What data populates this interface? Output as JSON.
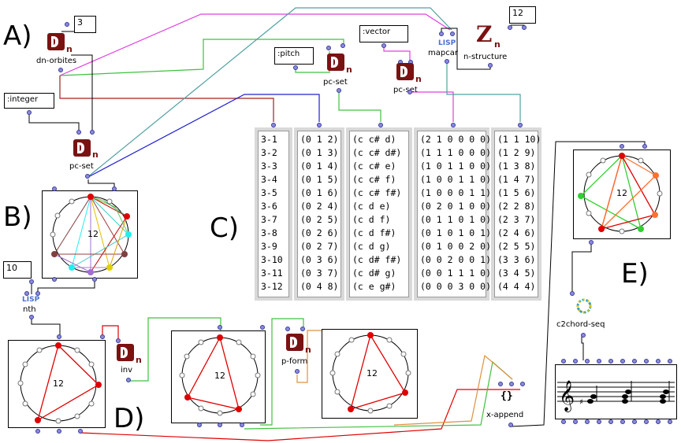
{
  "section_labels": {
    "a": "A)",
    "b": "B)",
    "c": "C)",
    "d": "D)",
    "e": "E)"
  },
  "objects": {
    "dn_orbites": "dn-orbites",
    "pc_set_1": "pc-set",
    "pc_set_2": "pc-set",
    "pc_set_main": "pc-set",
    "mapcar": "mapcar",
    "n_structure": "n-structure",
    "nth": "nth",
    "inv": "inv",
    "p_form": "p-form",
    "x_append": "x-append",
    "c2chord_seq": "c2chord-seq",
    "lisp_badge": "LISP",
    "dn_sub": "n"
  },
  "inputs": {
    "orbites_num": "3",
    "pitch_kw": ":pitch",
    "vector_kw": ":vector",
    "nstruct_num": "12",
    "integer_kw": ":integer",
    "nth_num": "10"
  },
  "circles": {
    "b_label": "12",
    "d1_label": "12",
    "d2_label": "12",
    "d3_label": "12",
    "e_label": "12"
  },
  "lists": {
    "names": [
      "3-1",
      "3-2",
      "3-3",
      "3-4",
      "3-5",
      "3-6",
      "3-7",
      "3-8",
      "3-9",
      "3-10",
      "3-11",
      "3-12"
    ],
    "pcs": [
      "(0 1 2)",
      "(0 1 3)",
      "(0 1 4)",
      "(0 1 5)",
      "(0 1 6)",
      "(0 2 4)",
      "(0 2 5)",
      "(0 2 6)",
      "(0 2 7)",
      "(0 3 6)",
      "(0 3 7)",
      "(0 4 8)"
    ],
    "pitches": [
      "(c c# d)",
      "(c c# d#)",
      "(c c# e)",
      "(c c# f)",
      "(c c# f#)",
      "(c d e)",
      "(c d f)",
      "(c d f#)",
      "(c d g)",
      "(c d# f#)",
      "(c d# g)",
      "(c e g#)"
    ],
    "vectors": [
      "(2 1 0 0 0 0)",
      "(1 1 1 0 0 0)",
      "(1 0 1 1 0 0)",
      "(1 0 0 1 1 0)",
      "(1 0 0 0 1 1)",
      "(0 2 0 1 0 0)",
      "(0 1 1 0 1 0)",
      "(0 1 0 1 0 1)",
      "(0 1 0 0 2 0)",
      "(0 0 2 0 0 1)",
      "(0 0 1 1 1 0)",
      "(0 0 0 3 0 0)"
    ],
    "structures": [
      "(1 1 10)",
      "(1 2 9)",
      "(1 3 8)",
      "(1 4 7)",
      "(1 5 6)",
      "(2 2 8)",
      "(2 3 7)",
      "(2 4 6)",
      "(2 5 5)",
      "(3 3 6)",
      "(3 4 5)",
      "(4 4 4)"
    ]
  },
  "colors": {
    "magenta": "#e040e0",
    "green": "#40c040",
    "darkred": "#a02020",
    "blue": "#2020d0",
    "teal": "#50a0a0",
    "orange": "#e09040",
    "red": "#e00000"
  }
}
